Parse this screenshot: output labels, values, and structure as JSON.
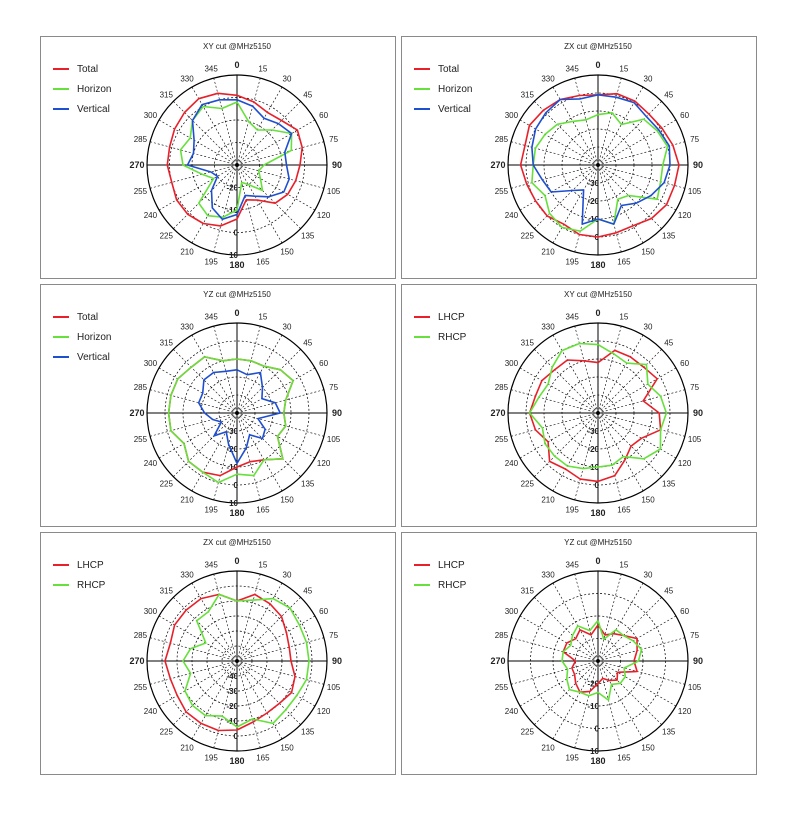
{
  "colors": {
    "Total": "#e8202a",
    "Horizon": "#66e03a",
    "Vertical": "#1e4fd0",
    "LHCP": "#e8202a",
    "RHCP": "#66e03a"
  },
  "chart_data": [
    {
      "type": "polar-line",
      "title": "XY cut @MHz5150",
      "angle_labels": [
        "0",
        "15",
        "30",
        "45",
        "60",
        "75",
        "90",
        "105",
        "120",
        "135",
        "150",
        "165",
        "180",
        "195",
        "210",
        "225",
        "240",
        "255",
        "270",
        "285",
        "300",
        "315",
        "330",
        "345"
      ],
      "radial_ticks": [
        "-20",
        "-10",
        "0",
        "10"
      ],
      "rlim": [
        -30,
        10
      ],
      "series": [
        {
          "name": "Total",
          "color": "#e8202a",
          "values": [
            1,
            -1,
            -3,
            -2,
            1,
            0,
            -2,
            -3,
            -4,
            -6,
            -12,
            -14,
            -6,
            -2,
            0,
            1,
            1,
            0,
            1,
            1,
            2,
            3,
            4,
            3
          ]
        },
        {
          "name": "Horizon",
          "color": "#66e03a",
          "values": [
            -2,
            -10,
            -12,
            -8,
            -2,
            -5,
            -18,
            -20,
            -18,
            -14,
            -20,
            -22,
            -10,
            -6,
            -4,
            -6,
            -18,
            -14,
            -6,
            -4,
            -6,
            -2,
            0,
            -4
          ]
        },
        {
          "name": "Vertical",
          "color": "#1e4fd0",
          "values": [
            -1,
            -3,
            -6,
            -4,
            -2,
            -8,
            -8,
            -6,
            -6,
            -10,
            -14,
            -16,
            -8,
            -5,
            -8,
            -14,
            -20,
            -18,
            -8,
            -10,
            -8,
            -2,
            1,
            0
          ]
        }
      ]
    },
    {
      "type": "polar-line",
      "title": "ZX cut @MHz5150",
      "angle_labels": [
        "0",
        "15",
        "30",
        "45",
        "60",
        "75",
        "90",
        "105",
        "120",
        "135",
        "150",
        "165",
        "180",
        "195",
        "210",
        "225",
        "240",
        "255",
        "270",
        "285",
        "300",
        "315",
        "330",
        "345"
      ],
      "radial_ticks": [
        "-30",
        "-20",
        "-10",
        "0"
      ],
      "rlim": [
        -40,
        10
      ],
      "series": [
        {
          "name": "Total",
          "color": "#e8202a",
          "values": [
            -1,
            1,
            1,
            0,
            1,
            3,
            5,
            4,
            4,
            2,
            -1,
            -1,
            0,
            0,
            -2,
            0,
            0,
            1,
            3,
            2,
            4,
            3,
            2,
            0
          ]
        },
        {
          "name": "Horizon",
          "color": "#66e03a",
          "values": [
            -12,
            -10,
            -14,
            -4,
            -2,
            0,
            -4,
            -4,
            -2,
            -16,
            -18,
            -6,
            -10,
            -2,
            0,
            -2,
            -6,
            -2,
            -4,
            -4,
            -6,
            -8,
            -12,
            -14
          ]
        },
        {
          "name": "Vertical",
          "color": "#1e4fd0",
          "values": [
            -1,
            -1,
            0,
            -2,
            -1,
            1,
            0,
            -2,
            -6,
            -10,
            -14,
            -6,
            -10,
            -6,
            -24,
            -20,
            -10,
            -8,
            -4,
            -2,
            0,
            1,
            2,
            -2
          ]
        }
      ]
    },
    {
      "type": "polar-line",
      "title": "YZ cut @MHz5150",
      "angle_labels": [
        "0",
        "15",
        "30",
        "45",
        "60",
        "75",
        "90",
        "105",
        "120",
        "135",
        "150",
        "165",
        "180",
        "195",
        "210",
        "225",
        "240",
        "255",
        "270",
        "285",
        "300",
        "315",
        "330",
        "345"
      ],
      "radial_ticks": [
        "-30",
        "-20",
        "-10",
        "0",
        "10"
      ],
      "rlim": [
        -40,
        10
      ],
      "series": [
        {
          "name": "Total",
          "color": "#e8202a",
          "values": [
            -10,
            -10,
            -10,
            -6,
            -4,
            -12,
            -14,
            -12,
            -14,
            -4,
            -10,
            -12,
            -10,
            -4,
            -2,
            -2,
            -6,
            -2,
            -2,
            -2,
            -2,
            -4,
            -4,
            -10
          ]
        },
        {
          "name": "Horizon",
          "color": "#66e03a",
          "values": [
            -10,
            -10,
            -10,
            -6,
            -4,
            -12,
            -14,
            -12,
            -14,
            -4,
            -10,
            -4,
            -6,
            0,
            -2,
            -2,
            -6,
            -2,
            -2,
            -2,
            -2,
            -4,
            -4,
            -10
          ]
        },
        {
          "name": "Vertical",
          "color": "#1e4fd0",
          "values": [
            -16,
            -18,
            -14,
            -20,
            -24,
            -18,
            -16,
            -28,
            -22,
            -20,
            -26,
            -20,
            -12,
            -22,
            -28,
            -22,
            -30,
            -26,
            -22,
            -18,
            -18,
            -14,
            -14,
            -16
          ]
        }
      ]
    },
    {
      "type": "polar-line",
      "title": "XY cut @MHz5150",
      "angle_labels": [
        "0",
        "15",
        "30",
        "45",
        "60",
        "75",
        "90",
        "105",
        "120",
        "135",
        "150",
        "165",
        "180",
        "195",
        "210",
        "225",
        "240",
        "255",
        "270",
        "285",
        "300",
        "315",
        "330",
        "345"
      ],
      "radial_ticks": [
        "-30",
        "-20",
        "-10",
        "0"
      ],
      "rlim": [
        -40,
        10
      ],
      "series": [
        {
          "name": "LHCP",
          "color": "#e8202a",
          "values": [
            -12,
            -4,
            -4,
            -4,
            -2,
            -14,
            -6,
            -4,
            -12,
            -14,
            -10,
            -4,
            -2,
            -2,
            -4,
            -2,
            -8,
            -4,
            -2,
            -4,
            -4,
            -6,
            -6,
            -10
          ]
        },
        {
          "name": "RHCP",
          "color": "#66e03a",
          "values": [
            -2,
            -6,
            -8,
            -2,
            -8,
            -4,
            -2,
            -4,
            0,
            -4,
            -12,
            -10,
            -10,
            -8,
            -6,
            -6,
            -6,
            -8,
            -2,
            -6,
            -8,
            -4,
            0,
            0
          ]
        }
      ]
    },
    {
      "type": "polar-line",
      "title": "ZX cut @MHz5150",
      "angle_labels": [
        "0",
        "15",
        "30",
        "45",
        "60",
        "75",
        "90",
        "105",
        "120",
        "135",
        "150",
        "165",
        "180",
        "195",
        "210",
        "225",
        "240",
        "255",
        "270",
        "285",
        "300",
        "315",
        "330",
        "345"
      ],
      "radial_ticks": [
        "-40",
        "-30",
        "-20",
        "-10",
        "0"
      ],
      "rlim": [
        -50,
        10
      ],
      "series": [
        {
          "name": "LHCP",
          "color": "#e8202a",
          "values": [
            -10,
            -4,
            -6,
            -8,
            -12,
            -14,
            -14,
            -10,
            -8,
            -10,
            -10,
            -8,
            -4,
            -2,
            -2,
            -2,
            -4,
            -4,
            -2,
            -4,
            -2,
            -2,
            -2,
            -4
          ]
        },
        {
          "name": "RHCP",
          "color": "#66e03a",
          "values": [
            -10,
            -8,
            -2,
            0,
            -2,
            -2,
            -2,
            -2,
            -4,
            -4,
            -2,
            -10,
            -6,
            -12,
            -8,
            -8,
            -10,
            -18,
            -14,
            -18,
            -26,
            -12,
            -12,
            -4
          ]
        }
      ]
    },
    {
      "type": "polar-line",
      "title": "YZ cut @MHz5150",
      "angle_labels": [
        "0",
        "15",
        "30",
        "45",
        "60",
        "75",
        "90",
        "105",
        "120",
        "135",
        "150",
        "165",
        "180",
        "195",
        "210",
        "225",
        "240",
        "255",
        "270",
        "285",
        "300",
        "315",
        "330",
        "345"
      ],
      "radial_ticks": [
        "-20",
        "-10",
        "0",
        "10"
      ],
      "rlim": [
        -30,
        10
      ],
      "series": [
        {
          "name": "LHCP",
          "color": "#e8202a",
          "values": [
            -14,
            -18,
            -16,
            -14,
            -10,
            -12,
            -14,
            -12,
            -20,
            -18,
            -20,
            -22,
            -20,
            -16,
            -14,
            -16,
            -18,
            -18,
            -20,
            -14,
            -14,
            -16,
            -14,
            -18
          ]
        },
        {
          "name": "RHCP",
          "color": "#66e03a",
          "values": [
            -12,
            -20,
            -14,
            -14,
            -12,
            -10,
            -12,
            -18,
            -16,
            -16,
            -18,
            -12,
            -16,
            -14,
            -14,
            -12,
            -14,
            -16,
            -14,
            -14,
            -16,
            -14,
            -12,
            -16
          ]
        }
      ]
    }
  ]
}
